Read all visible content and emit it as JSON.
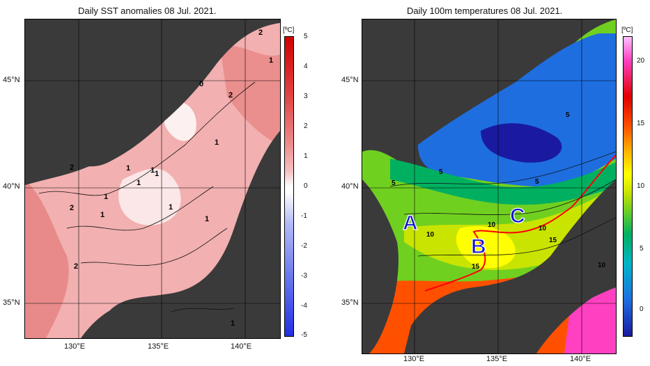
{
  "left_panel": {
    "title": "Daily SST anomalies 08 Jul. 2021.",
    "colorbar": {
      "unit": "[ºC]",
      "ticks": [
        "5",
        "4",
        "3",
        "2",
        "1",
        "0",
        "-1",
        "-2",
        "-3",
        "-4",
        "-5"
      ],
      "colors": [
        "#2030e0",
        "#6a78ee",
        "#b5bdf6",
        "#ffffff",
        "#f6c2c2",
        "#ee8888",
        "#e04545",
        "#d00000"
      ]
    },
    "contour_labels": [
      "2",
      "1",
      "0",
      "2",
      "1",
      "2",
      "1",
      "1",
      "1",
      "1",
      "2",
      "1",
      "1",
      "2",
      "1",
      "1",
      "1"
    ]
  },
  "right_panel": {
    "title": "Daily 100m temperatures 08 Jul. 2021.",
    "colorbar": {
      "unit": "[ºC]",
      "ticks": [
        "20",
        "15",
        "10",
        "5",
        "0"
      ],
      "colors": [
        "#1a1aa0",
        "#1e6ee0",
        "#00b4c8",
        "#00b060",
        "#70d020",
        "#c8e400",
        "#ffff00",
        "#ffb000",
        "#ff5000",
        "#e00000",
        "#ff40c0",
        "#ffc0ff"
      ]
    },
    "contour_labels": [
      "5",
      "5",
      "5",
      "5",
      "10",
      "10",
      "10",
      "15",
      "15",
      "10"
    ],
    "region_labels": [
      "A",
      "B",
      "C"
    ]
  },
  "axes": {
    "lat_ticks": [
      "45°N",
      "40°N",
      "35°N"
    ],
    "lon_ticks": [
      "130°E",
      "135°E",
      "140°E"
    ]
  }
}
